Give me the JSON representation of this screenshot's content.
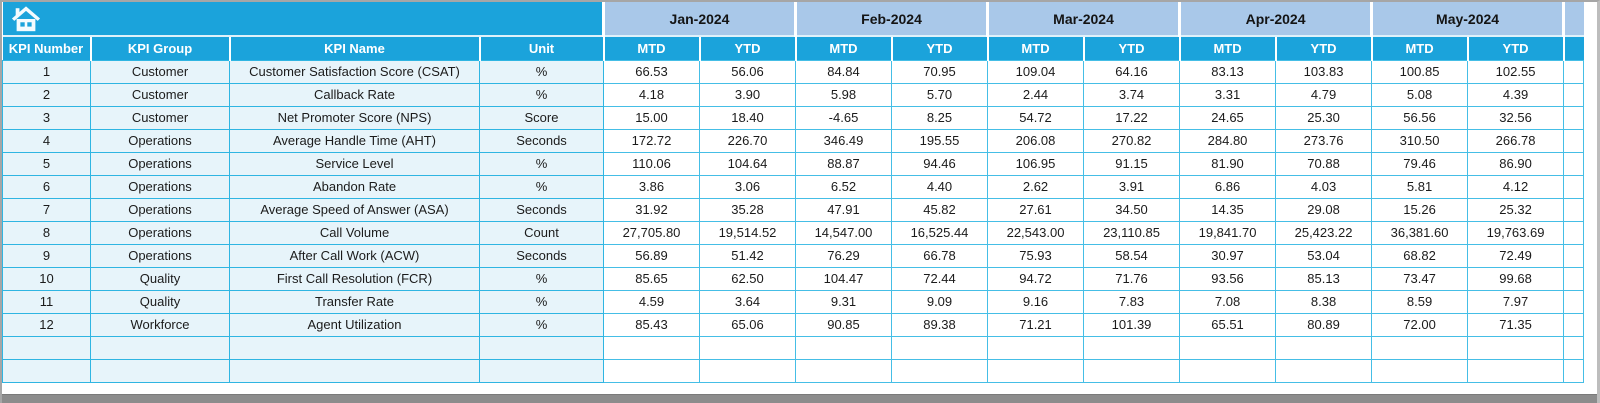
{
  "table": {
    "corner_icon": "home-icon",
    "months": [
      "Jan-2024",
      "Feb-2024",
      "Mar-2024",
      "Apr-2024",
      "May-2024"
    ],
    "sub_headers": [
      "MTD",
      "YTD"
    ],
    "info_headers": [
      "KPI Number",
      "KPI Group",
      "KPI Name",
      "Unit"
    ],
    "rows": [
      {
        "number": "1",
        "group": "Customer",
        "name": "Customer Satisfaction Score (CSAT)",
        "unit": "%",
        "values": [
          "66.53",
          "56.06",
          "84.84",
          "70.95",
          "109.04",
          "64.16",
          "83.13",
          "103.83",
          "100.85",
          "102.55"
        ]
      },
      {
        "number": "2",
        "group": "Customer",
        "name": "Callback Rate",
        "unit": "%",
        "values": [
          "4.18",
          "3.90",
          "5.98",
          "5.70",
          "2.44",
          "3.74",
          "3.31",
          "4.79",
          "5.08",
          "4.39"
        ]
      },
      {
        "number": "3",
        "group": "Customer",
        "name": "Net Promoter Score (NPS)",
        "unit": "Score",
        "values": [
          "15.00",
          "18.40",
          "-4.65",
          "8.25",
          "54.72",
          "17.22",
          "24.65",
          "25.30",
          "56.56",
          "32.56"
        ]
      },
      {
        "number": "4",
        "group": "Operations",
        "name": "Average Handle Time (AHT)",
        "unit": "Seconds",
        "values": [
          "172.72",
          "226.70",
          "346.49",
          "195.55",
          "206.08",
          "270.82",
          "284.80",
          "273.76",
          "310.50",
          "266.78"
        ]
      },
      {
        "number": "5",
        "group": "Operations",
        "name": "Service Level",
        "unit": "%",
        "values": [
          "110.06",
          "104.64",
          "88.87",
          "94.46",
          "106.95",
          "91.15",
          "81.90",
          "70.88",
          "79.46",
          "86.90"
        ]
      },
      {
        "number": "6",
        "group": "Operations",
        "name": "Abandon Rate",
        "unit": "%",
        "values": [
          "3.86",
          "3.06",
          "6.52",
          "4.40",
          "2.62",
          "3.91",
          "6.86",
          "4.03",
          "5.81",
          "4.12"
        ]
      },
      {
        "number": "7",
        "group": "Operations",
        "name": "Average Speed of Answer (ASA)",
        "unit": "Seconds",
        "values": [
          "31.92",
          "35.28",
          "47.91",
          "45.82",
          "27.61",
          "34.50",
          "14.35",
          "29.08",
          "15.26",
          "25.32"
        ]
      },
      {
        "number": "8",
        "group": "Operations",
        "name": "Call Volume",
        "unit": "Count",
        "values": [
          "27,705.80",
          "19,514.52",
          "14,547.00",
          "16,525.44",
          "22,543.00",
          "23,110.85",
          "19,841.70",
          "25,423.22",
          "36,381.60",
          "19,763.69"
        ]
      },
      {
        "number": "9",
        "group": "Operations",
        "name": "After Call Work (ACW)",
        "unit": "Seconds",
        "values": [
          "56.89",
          "51.42",
          "76.29",
          "66.78",
          "75.93",
          "58.54",
          "30.97",
          "53.04",
          "68.82",
          "72.49"
        ]
      },
      {
        "number": "10",
        "group": "Quality",
        "name": "First Call Resolution (FCR)",
        "unit": "%",
        "values": [
          "85.65",
          "62.50",
          "104.47",
          "72.44",
          "94.72",
          "71.76",
          "93.56",
          "85.13",
          "73.47",
          "99.68"
        ]
      },
      {
        "number": "11",
        "group": "Quality",
        "name": "Transfer Rate",
        "unit": "%",
        "values": [
          "4.59",
          "3.64",
          "9.31",
          "9.09",
          "9.16",
          "7.83",
          "7.08",
          "8.38",
          "8.59",
          "7.97"
        ]
      },
      {
        "number": "12",
        "group": "Workforce",
        "name": "Agent Utilization",
        "unit": "%",
        "values": [
          "85.43",
          "65.06",
          "90.85",
          "89.38",
          "71.21",
          "101.39",
          "65.51",
          "80.89",
          "72.00",
          "71.35"
        ]
      }
    ],
    "empty_row_count": 2
  },
  "colors": {
    "header_cyan": "#1BA3DB",
    "month_band_blue": "#A9C8E9",
    "info_cell_tint": "#E7F4FA",
    "cell_border_cyan": "#45BEE6",
    "header_text": "#FFFFFF",
    "body_text": "#1B1B1B",
    "window_edge_gray": "#8C8C8C"
  }
}
